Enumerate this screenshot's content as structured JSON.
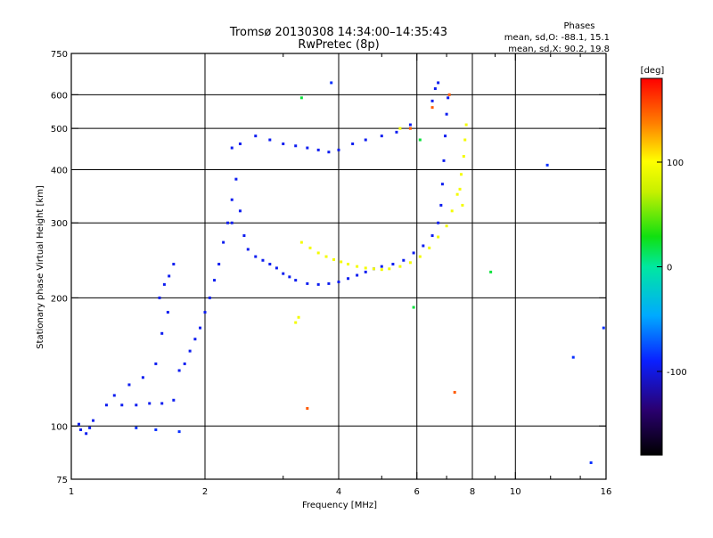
{
  "chart_data": {
    "type": "scatter",
    "title_line1": "Tromsø 20130308 14:34:00–14:35:43",
    "title_line2": "RwPretec (8p)",
    "stats": {
      "title": "Phases",
      "line1": "mean, sd,O: -88.1, 15.1",
      "line2": "mean, sd,X:  90.2, 19.8"
    },
    "xlabel": "Frequency [MHz]",
    "ylabel": "Stationary phase Virtual Height [km]",
    "x_scale": "log",
    "y_scale": "log",
    "xlim": [
      1,
      16
    ],
    "ylim": [
      75,
      750
    ],
    "x_ticks": [
      1,
      2,
      4,
      6,
      8,
      10,
      16
    ],
    "x_tick_labels": [
      "1",
      "2",
      "4",
      "6",
      "8",
      "10",
      "16"
    ],
    "x_gridlines": [
      2,
      4,
      6,
      8,
      10
    ],
    "x_minor_ticks": [
      3,
      5,
      7,
      9,
      12,
      14
    ],
    "y_ticks": [
      75,
      100,
      200,
      300,
      400,
      500,
      600,
      750
    ],
    "y_tick_labels": [
      "75",
      "100",
      "200",
      "300",
      "400",
      "500",
      "600",
      "750"
    ],
    "y_gridlines": [
      100,
      200,
      300,
      400,
      500,
      600
    ],
    "grid": true,
    "colorbar": {
      "label": "[deg]",
      "min": -180,
      "max": 180,
      "ticks": [
        100,
        0,
        -100
      ],
      "tick_labels": [
        "100",
        "0",
        "-100"
      ]
    },
    "colors": {
      "o_mode": "#1a3ee0",
      "x_mode": "#e8e81a"
    },
    "series": [
      {
        "phase": -95,
        "points": [
          [
            1.05,
            98
          ],
          [
            1.08,
            96
          ],
          [
            1.1,
            99
          ],
          [
            1.12,
            103
          ],
          [
            1.04,
            101
          ],
          [
            1.2,
            112
          ],
          [
            1.3,
            112
          ],
          [
            1.4,
            112
          ],
          [
            1.5,
            113
          ],
          [
            1.6,
            113
          ],
          [
            1.7,
            115
          ],
          [
            1.25,
            118
          ],
          [
            1.35,
            125
          ],
          [
            1.45,
            130
          ],
          [
            1.55,
            140
          ],
          [
            1.6,
            165
          ],
          [
            1.65,
            185
          ],
          [
            1.58,
            200
          ],
          [
            1.62,
            215
          ],
          [
            1.66,
            225
          ],
          [
            1.7,
            240
          ],
          [
            1.75,
            135
          ],
          [
            1.8,
            140
          ],
          [
            1.85,
            150
          ],
          [
            1.9,
            160
          ],
          [
            1.95,
            170
          ],
          [
            2.0,
            185
          ],
          [
            2.05,
            200
          ],
          [
            2.1,
            220
          ],
          [
            2.15,
            240
          ],
          [
            2.2,
            270
          ],
          [
            2.25,
            300
          ],
          [
            2.3,
            340
          ],
          [
            2.35,
            380
          ],
          [
            2.3,
            300
          ],
          [
            2.4,
            320
          ],
          [
            2.45,
            280
          ],
          [
            2.5,
            260
          ],
          [
            2.6,
            250
          ],
          [
            2.7,
            245
          ],
          [
            2.8,
            240
          ],
          [
            2.9,
            235
          ],
          [
            3.0,
            228
          ],
          [
            3.1,
            224
          ],
          [
            3.2,
            220
          ],
          [
            3.4,
            216
          ],
          [
            3.6,
            215
          ],
          [
            3.8,
            216
          ],
          [
            4.0,
            218
          ],
          [
            4.2,
            222
          ],
          [
            4.4,
            226
          ],
          [
            4.6,
            230
          ],
          [
            4.8,
            234
          ],
          [
            5.0,
            237
          ],
          [
            5.3,
            240
          ],
          [
            5.6,
            245
          ],
          [
            5.9,
            255
          ],
          [
            6.2,
            265
          ],
          [
            6.5,
            280
          ],
          [
            6.7,
            300
          ],
          [
            6.8,
            330
          ],
          [
            6.85,
            370
          ],
          [
            6.9,
            420
          ],
          [
            6.95,
            480
          ],
          [
            7.0,
            540
          ],
          [
            7.05,
            590
          ],
          [
            6.6,
            620
          ],
          [
            6.5,
            580
          ],
          [
            6.7,
            640
          ],
          [
            2.6,
            480
          ],
          [
            2.8,
            470
          ],
          [
            3.0,
            460
          ],
          [
            3.2,
            455
          ],
          [
            3.4,
            450
          ],
          [
            3.6,
            445
          ],
          [
            3.8,
            440
          ],
          [
            4.0,
            445
          ],
          [
            4.3,
            460
          ],
          [
            4.6,
            470
          ],
          [
            5.0,
            480
          ],
          [
            5.4,
            490
          ],
          [
            5.8,
            510
          ],
          [
            2.3,
            450
          ],
          [
            2.4,
            460
          ]
        ]
      },
      {
        "phase": 95,
        "points": [
          [
            3.3,
            270
          ],
          [
            3.45,
            262
          ],
          [
            3.6,
            255
          ],
          [
            3.75,
            250
          ],
          [
            3.9,
            246
          ],
          [
            4.05,
            243
          ],
          [
            4.2,
            240
          ],
          [
            4.4,
            237
          ],
          [
            4.6,
            235
          ],
          [
            4.8,
            234
          ],
          [
            5.0,
            233
          ],
          [
            5.2,
            234
          ],
          [
            5.5,
            237
          ],
          [
            5.8,
            242
          ],
          [
            6.1,
            250
          ],
          [
            6.4,
            262
          ],
          [
            6.7,
            278
          ],
          [
            7.0,
            295
          ],
          [
            7.2,
            320
          ],
          [
            7.4,
            350
          ],
          [
            7.55,
            390
          ],
          [
            7.65,
            430
          ],
          [
            7.7,
            470
          ],
          [
            7.75,
            510
          ],
          [
            3.2,
            175
          ],
          [
            3.25,
            180
          ],
          [
            5.5,
            500
          ],
          [
            7.5,
            360
          ],
          [
            7.6,
            330
          ]
        ]
      },
      {
        "phase": 20,
        "points": [
          [
            3.3,
            590
          ],
          [
            5.9,
            190
          ],
          [
            6.1,
            470
          ],
          [
            8.8,
            230
          ]
        ]
      },
      {
        "phase": 150,
        "points": [
          [
            3.4,
            110
          ],
          [
            7.3,
            120
          ],
          [
            5.8,
            500
          ],
          [
            6.5,
            560
          ],
          [
            7.1,
            600
          ]
        ]
      },
      {
        "phase": -85,
        "points": [
          [
            3.85,
            640
          ],
          [
            11.8,
            410
          ],
          [
            13.5,
            145
          ],
          [
            14.8,
            82
          ],
          [
            15.8,
            170
          ],
          [
            1.55,
            98
          ],
          [
            1.75,
            97
          ],
          [
            1.4,
            99
          ]
        ]
      }
    ]
  }
}
